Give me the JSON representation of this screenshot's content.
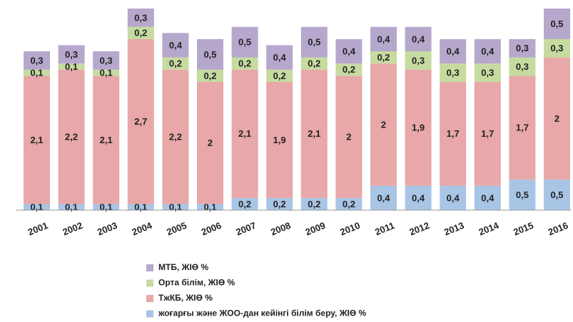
{
  "chart_data": {
    "type": "stacked_bar",
    "categories": [
      "2001",
      "2002",
      "2003",
      "2004",
      "2005",
      "2006",
      "2007",
      "2008",
      "2009",
      "2010",
      "2011",
      "2012",
      "2013",
      "2014",
      "2015",
      "2016"
    ],
    "series": [
      {
        "name": "жоғарғы және ЖОО-дан кейінгі білім беру, ЖІӨ %",
        "color": "#a9c5e5",
        "values": [
          0.1,
          0.1,
          0.1,
          0.1,
          0.1,
          0.1,
          0.2,
          0.2,
          0.2,
          0.2,
          0.4,
          0.4,
          0.4,
          0.4,
          0.5,
          0.5
        ],
        "value_labels": [
          "0,1",
          "0,1",
          "0,1",
          "0,1",
          "0,1",
          "0,1",
          "0,2",
          "0,2",
          "0,2",
          "0,2",
          "0,4",
          "0,4",
          "0,4",
          "0,4",
          "0,5",
          "0,5"
        ]
      },
      {
        "name": "ТжКБ, ЖІӨ %",
        "color": "#e8a7a8",
        "values": [
          2.1,
          2.2,
          2.1,
          2.7,
          2.2,
          2,
          2.1,
          1.9,
          2.1,
          2,
          2,
          1.9,
          1.7,
          1.7,
          1.7,
          2
        ],
        "value_labels": [
          "2,1",
          "2,2",
          "2,1",
          "2,7",
          "2,2",
          "2",
          "2,1",
          "1,9",
          "2,1",
          "2",
          "2",
          "1,9",
          "1,7",
          "1,7",
          "1,7",
          "2"
        ]
      },
      {
        "name": "Орта білім, ЖІӨ %",
        "color": "#c6dba0",
        "values": [
          0.1,
          0.1,
          0.1,
          0.2,
          0.2,
          0.2,
          0.2,
          0.2,
          0.2,
          0.2,
          0.2,
          0.3,
          0.3,
          0.3,
          0.3,
          0.3
        ],
        "value_labels": [
          "0,1",
          "0,1",
          "0,1",
          "0,2",
          "0,2",
          "0,2",
          "0,2",
          "0,2",
          "0,2",
          "0,2",
          "0,2",
          "0,3",
          "0,3",
          "0,3",
          "0,3",
          "0,3"
        ]
      },
      {
        "name": "МТБ, ЖІӨ %",
        "color": "#b6a7cc",
        "values": [
          0.3,
          0.3,
          0.3,
          0.3,
          0.4,
          0.5,
          0.5,
          0.4,
          0.5,
          0.4,
          0.4,
          0.4,
          0.4,
          0.4,
          0.3,
          0.5
        ],
        "value_labels": [
          "0,3",
          "0,3",
          "0,3",
          "0,3",
          "0,4",
          "0,5",
          "0,5",
          "0,4",
          "0,5",
          "0,4",
          "0,4",
          "0,4",
          "0,4",
          "0,4",
          "0,3",
          "0,5"
        ]
      }
    ]
  }
}
